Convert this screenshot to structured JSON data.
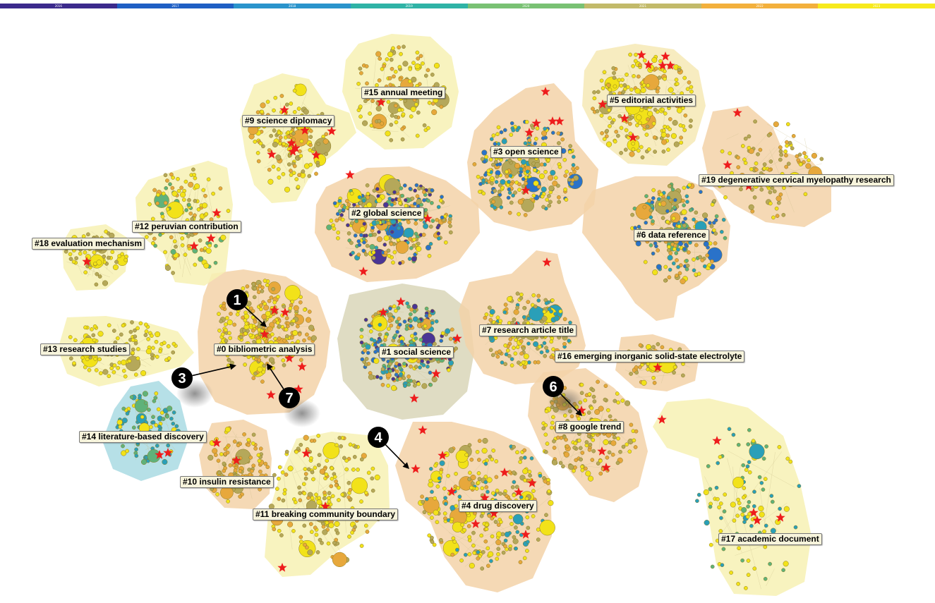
{
  "timeline": {
    "years": [
      "2016",
      "2017",
      "2018",
      "2019",
      "2020",
      "2021",
      "2022",
      "2023"
    ],
    "colors": [
      "#3b2a8c",
      "#1f5fc4",
      "#2a94cc",
      "#2fb3a6",
      "#79c173",
      "#c2ba6a",
      "#f3b03c",
      "#f7ea1c"
    ]
  },
  "clusters": [
    {
      "id": "c0",
      "label": "#0 bibliometric analysis",
      "fill": "#f3d2a8"
    },
    {
      "id": "c1",
      "label": "#1 social science",
      "fill": "#d9d6b9"
    },
    {
      "id": "c2",
      "label": "#2 global science",
      "fill": "#f3d2a8"
    },
    {
      "id": "c3",
      "label": "#3 open science",
      "fill": "#f3d2a8"
    },
    {
      "id": "c4",
      "label": "#4 drug discovery",
      "fill": "#f3d2a8"
    },
    {
      "id": "c5",
      "label": "#5 editorial activities",
      "fill": "#f6e9b5"
    },
    {
      "id": "c6",
      "label": "#6 data reference",
      "fill": "#f3d2a8"
    },
    {
      "id": "c7",
      "label": "#7 research article title",
      "fill": "#f3d2a8"
    },
    {
      "id": "c8",
      "label": "#8 google trend",
      "fill": "#f3d2a8"
    },
    {
      "id": "c9",
      "label": "#9 science diplomacy",
      "fill": "#f7f1b4"
    },
    {
      "id": "c10",
      "label": "#10 insulin resistance",
      "fill": "#f3d2a8"
    },
    {
      "id": "c11",
      "label": "#11 breaking community boundary",
      "fill": "#f7f1b4"
    },
    {
      "id": "c12",
      "label": "#12 peruvian contribution",
      "fill": "#f7f1b4"
    },
    {
      "id": "c13",
      "label": "#13 research studies",
      "fill": "#f7f1b4"
    },
    {
      "id": "c14",
      "label": "#14 literature-based discovery",
      "fill": "#a9dbe3"
    },
    {
      "id": "c15",
      "label": "#15 annual meeting",
      "fill": "#f7f1b4"
    },
    {
      "id": "c16",
      "label": "#16 emerging inorganic solid-state electrolyte",
      "fill": "#f3d2a8"
    },
    {
      "id": "c17",
      "label": "#17 academic document",
      "fill": "#f7f1b4"
    },
    {
      "id": "c18",
      "label": "#18 evaluation mechanism",
      "fill": "#f7f1b4"
    },
    {
      "id": "c19",
      "label": "#19 degenerative cervical myelopathy research",
      "fill": "#f3d2a8"
    }
  ],
  "markers": [
    {
      "id": "m1",
      "number": "1"
    },
    {
      "id": "m3",
      "number": "3"
    },
    {
      "id": "m4",
      "number": "4"
    },
    {
      "id": "m6",
      "number": "6"
    },
    {
      "id": "m7",
      "number": "7"
    }
  ],
  "colors": {
    "star": "#ee1c1c",
    "node_main": "#f2e219",
    "node_orange": "#e7a83c",
    "node_olive": "#b5a85a",
    "node_teal": "#2a9fb8",
    "node_blue": "#2a72c9",
    "node_green": "#5fb27a",
    "node_purple": "#4a3595"
  }
}
